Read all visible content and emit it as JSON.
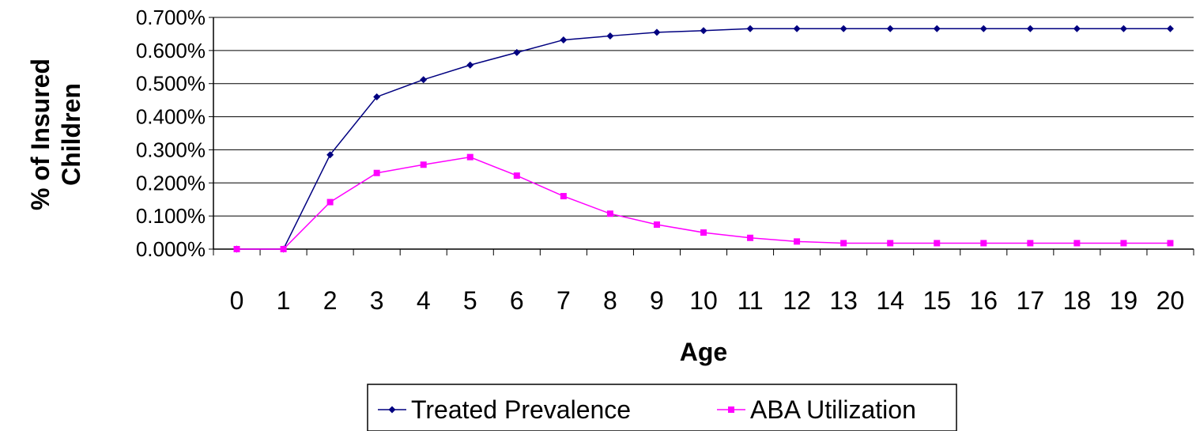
{
  "chart_data": {
    "type": "line",
    "title": "",
    "xlabel": "Age",
    "ylabel_lines": [
      "% of Insured",
      "Children"
    ],
    "x": [
      0,
      1,
      2,
      3,
      4,
      5,
      6,
      7,
      8,
      9,
      10,
      11,
      12,
      13,
      14,
      15,
      16,
      17,
      18,
      19,
      20
    ],
    "x_tick_labels": [
      "0",
      "1",
      "2",
      "3",
      "4",
      "5",
      "6",
      "7",
      "8",
      "9",
      "10",
      "11",
      "12",
      "13",
      "14",
      "15",
      "16",
      "17",
      "18",
      "19",
      "20"
    ],
    "y_ticks": [
      0,
      0.1,
      0.2,
      0.3,
      0.4,
      0.5,
      0.6,
      0.7
    ],
    "y_tick_labels": [
      "0.000%",
      "0.100%",
      "0.200%",
      "0.300%",
      "0.400%",
      "0.500%",
      "0.600%",
      "0.700%"
    ],
    "ylim": [
      0,
      0.7
    ],
    "grid": "horizontal",
    "legend_position": "bottom",
    "series": [
      {
        "name": "Treated Prevalence",
        "color": "#000080",
        "marker": "diamond",
        "values": [
          0,
          0,
          0.285,
          0.46,
          0.512,
          0.556,
          0.594,
          0.632,
          0.644,
          0.655,
          0.66,
          0.666,
          0.666,
          0.666,
          0.666,
          0.666,
          0.666,
          0.666,
          0.666,
          0.666,
          0.666
        ]
      },
      {
        "name": "ABA Utilization",
        "color": "#ff00ff",
        "marker": "square",
        "values": [
          0,
          0,
          0.142,
          0.23,
          0.255,
          0.278,
          0.222,
          0.16,
          0.107,
          0.074,
          0.05,
          0.034,
          0.023,
          0.018,
          0.018,
          0.018,
          0.018,
          0.018,
          0.018,
          0.018,
          0.018
        ]
      }
    ]
  }
}
